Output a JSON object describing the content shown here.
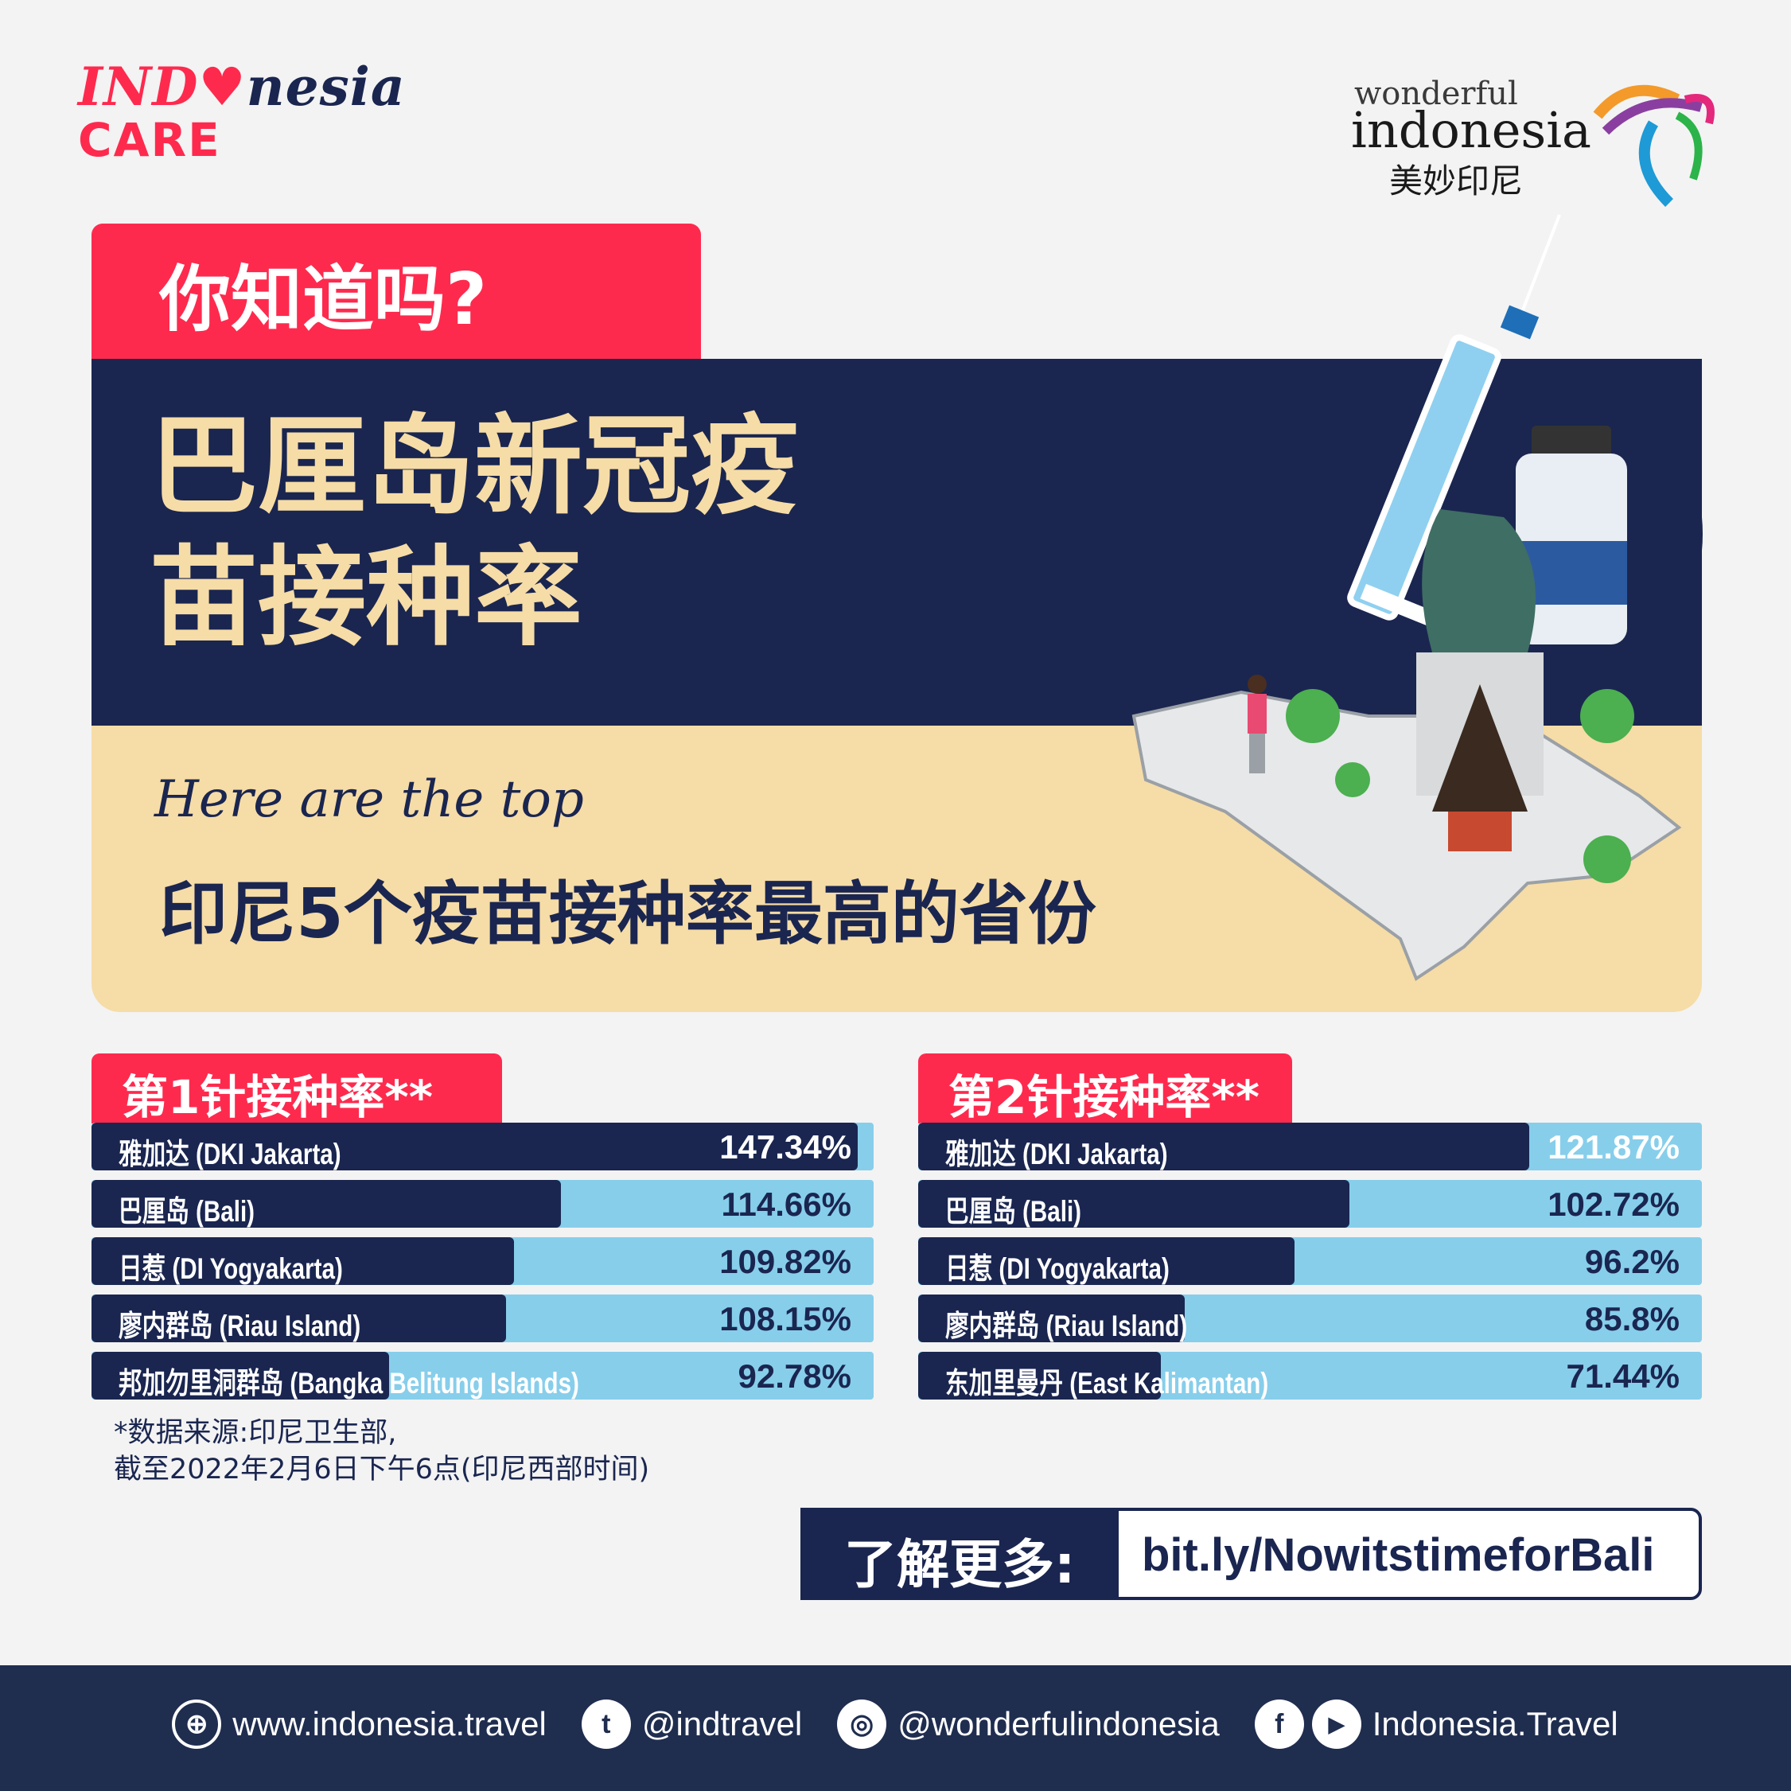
{
  "brand": {
    "care_logo": {
      "line1_pre": "IND",
      "line1_heart": "♥",
      "line1_post": "nesia",
      "line2": "CARE"
    },
    "wi_logo": {
      "line1": "wonderful",
      "line2": "indonesia",
      "line3": "美妙印尼"
    }
  },
  "header": {
    "tag": "你知道吗?",
    "title_line1": "巴厘岛新冠疫",
    "title_line2": "苗接种率",
    "script": "Here are the top",
    "subtitle": "印尼5个疫苗接种率最高的省份"
  },
  "colors": {
    "red": "#fe2a4e",
    "navy": "#1a2650",
    "beige": "#f6dca6",
    "light_blue": "#87ceeb",
    "footer": "#1f2d4f"
  },
  "dose1": {
    "title": "第1针接种率**",
    "rows": [
      {
        "label": "雅加达 (DKI Jakarta)",
        "value": "147.34%",
        "fill": 0.98
      },
      {
        "label": "巴厘岛 (Bali)",
        "value": "114.66%",
        "fill": 0.6
      },
      {
        "label": "日惹 (DI Yogyakarta)",
        "value": "109.82%",
        "fill": 0.54
      },
      {
        "label": "廖内群岛 (Riau Island)",
        "value": "108.15%",
        "fill": 0.53
      },
      {
        "label": "邦加勿里洞群岛 (Bangka Belitung Islands)",
        "value": "92.78%",
        "fill": 0.38
      }
    ]
  },
  "dose2": {
    "title": "第2针接种率**",
    "rows": [
      {
        "label": "雅加达 (DKI Jakarta)",
        "value": "121.87%",
        "fill": 0.78
      },
      {
        "label": "巴厘岛 (Bali)",
        "value": "102.72%",
        "fill": 0.55
      },
      {
        "label": "日惹 (DI Yogyakarta)",
        "value": "96.2%",
        "fill": 0.48
      },
      {
        "label": "廖内群岛 (Riau Island)",
        "value": "85.8%",
        "fill": 0.34
      },
      {
        "label": "东加里曼丹 (East Kalimantan)",
        "value": "71.44%",
        "fill": 0.31
      }
    ]
  },
  "note": {
    "line1": "*数据来源:印尼卫生部,",
    "line2": "截至2022年2月6日下午6点(印尼西部时间)"
  },
  "more": {
    "label": "了解更多:",
    "url": "bit.ly/NowitstimeforBali"
  },
  "footer": {
    "website": "www.indonesia.travel",
    "twitter": "@indtravel",
    "instagram": "@wonderfulindonesia",
    "facebook_youtube": "Indonesia.Travel",
    "icons": {
      "globe": "⊕",
      "twitter": "t",
      "instagram": "◎",
      "facebook": "f",
      "youtube": "▶"
    }
  }
}
